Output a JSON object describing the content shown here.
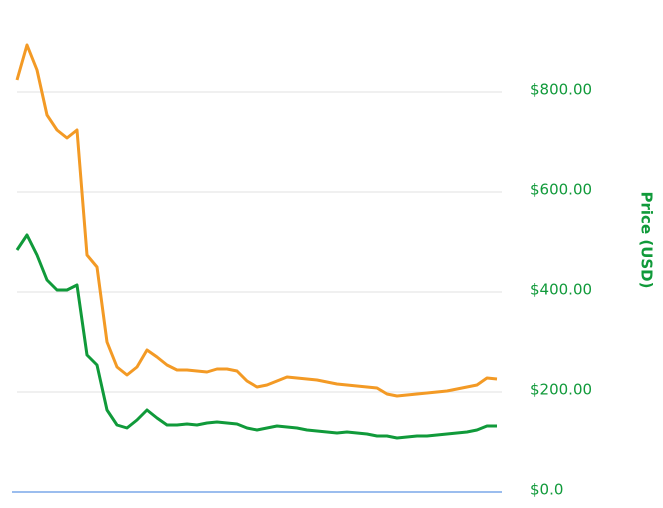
{
  "chart_data": {
    "type": "line",
    "y_axis_label": "Price (USD)",
    "series": [
      {
        "color": "#f39a25",
        "values": [
          824,
          894,
          844,
          754,
          724,
          708,
          724,
          474,
          450,
          300,
          250,
          234,
          250,
          284,
          270,
          254,
          244,
          244,
          242,
          240,
          246,
          246,
          242,
          222,
          210,
          214,
          222,
          230,
          228,
          226,
          224,
          220,
          216,
          214,
          212,
          210,
          208,
          196,
          192,
          194,
          196,
          198,
          200,
          202,
          206,
          210,
          214,
          228,
          226
        ]
      },
      {
        "color": "#109a3a",
        "values": [
          484,
          514,
          474,
          424,
          404,
          404,
          414,
          274,
          254,
          164,
          134,
          128,
          144,
          164,
          148,
          134,
          134,
          136,
          134,
          138,
          140,
          138,
          136,
          128,
          124,
          128,
          132,
          130,
          128,
          124,
          122,
          120,
          118,
          120,
          118,
          116,
          112,
          112,
          108,
          110,
          112,
          112,
          114,
          116,
          118,
          120,
          124,
          132,
          132
        ]
      }
    ],
    "ylim": [
      0,
      900
    ],
    "yticks": [
      {
        "value": 0,
        "label": "$0.0"
      },
      {
        "value": 200,
        "label": "$200.00"
      },
      {
        "value": 400,
        "label": "$400.00"
      },
      {
        "value": 600,
        "label": "$600.00"
      },
      {
        "value": 800,
        "label": "$800.00"
      }
    ],
    "grid": true,
    "axis_color": "#109a3a"
  }
}
